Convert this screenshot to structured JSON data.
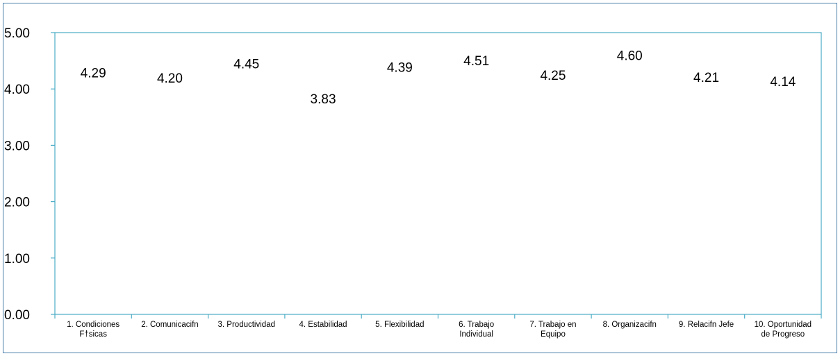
{
  "chart_data": {
    "type": "line",
    "categories": [
      "1. Condiciones F†sicas",
      "2. Comunicacifn",
      "3. Productividad",
      "4. Estabilidad",
      "5. Flexibilidad",
      "6. Trabajo Individual",
      "7. Trabajo en Equipo",
      "8. Organizacifn",
      "9. Relacifn Jefe",
      "10. Oportunidad de Progreso"
    ],
    "category_lines": [
      [
        "1. Condiciones",
        "F†sicas"
      ],
      [
        "2. Comunicacifn"
      ],
      [
        "3. Productividad"
      ],
      [
        "4. Estabilidad"
      ],
      [
        "5. Flexibilidad"
      ],
      [
        "6. Trabajo",
        "Individual"
      ],
      [
        "7. Trabajo en",
        "Equipo"
      ],
      [
        "8. Organizacifn"
      ],
      [
        "9. Relacifn Jefe"
      ],
      [
        "10. Oportunidad",
        "de Progreso"
      ]
    ],
    "values": [
      4.29,
      4.2,
      4.45,
      3.83,
      4.39,
      4.51,
      4.25,
      4.6,
      4.21,
      4.14
    ],
    "data_labels": [
      "4.29",
      "4.20",
      "4.45",
      "3.83",
      "4.39",
      "4.51",
      "4.25",
      "4.60",
      "4.21",
      "4.14"
    ],
    "yticks": [
      "0.00",
      "1.00",
      "2.00",
      "3.00",
      "4.00",
      "5.00"
    ],
    "ylim": [
      0,
      5
    ],
    "grid": false,
    "legend": "none",
    "title": "",
    "xlabel": "",
    "ylabel": "",
    "colors": {
      "axis": "#4bacc6",
      "frame": "#4a7ea8",
      "text": "#000000"
    }
  }
}
